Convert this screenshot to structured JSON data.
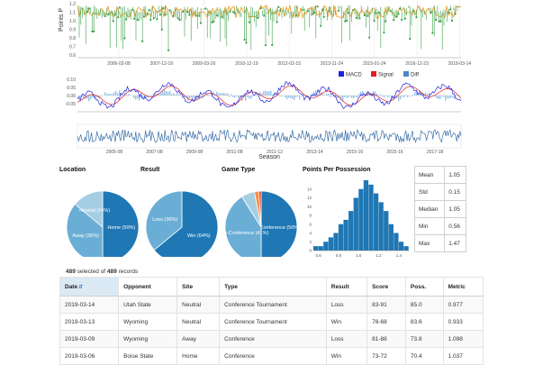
{
  "timeseries": {
    "ylabel": "Points P",
    "y_ticks": [
      "1.2",
      "1.1",
      "1.0",
      "0.9",
      "0.8",
      "0.7",
      "0.6"
    ],
    "x_ticks": [
      "2006-02-08",
      "2007-12-19",
      "2009-03-26",
      "2010-12-19",
      "2012-02-15",
      "2013-11-24",
      "2015-01-24",
      "2016-12-23",
      "2018-03-14"
    ]
  },
  "macd": {
    "y_ticks": [
      "0.10",
      "0.05",
      "0.00",
      "-0.05"
    ],
    "legend": [
      {
        "label": "MACD",
        "color": "#1f1fe0"
      },
      {
        "label": "Signal",
        "color": "#e02020"
      },
      {
        "label": "Diff",
        "color": "#4f86c6"
      }
    ]
  },
  "overview": {
    "xlabel": "Season",
    "x_ticks": [
      "2005-08",
      "2007-08",
      "2009-08",
      "2011-08",
      "2011-12",
      "2013-14",
      "2015-16",
      "2015-16",
      "2017-18"
    ]
  },
  "pies": [
    {
      "title": "Location",
      "colors": [
        "#1f77b4",
        "#6aaed6",
        "#a6cee3"
      ],
      "slices": [
        {
          "label": "Home (50%)",
          "value": 50
        },
        {
          "label": "Away (36%)",
          "value": 36
        },
        {
          "label": "Neutral (14%)",
          "value": 14
        }
      ]
    },
    {
      "title": "Result",
      "colors": [
        "#1f77b4",
        "#6aaed6"
      ],
      "slices": [
        {
          "label": "Win (64%)",
          "value": 64
        },
        {
          "label": "Loss (36%)",
          "value": 36
        }
      ]
    },
    {
      "title": "Game Type",
      "colors": [
        "#1f77b4",
        "#6aaed6",
        "#a6cee3",
        "#fd8d3c",
        "#d62728"
      ],
      "slices": [
        {
          "label": "Conference (50%)",
          "value": 50
        },
        {
          "label": "Non-Conference (41%)",
          "value": 41
        },
        {
          "label": "",
          "value": 6
        },
        {
          "label": "",
          "value": 2
        },
        {
          "label": "",
          "value": 1
        }
      ]
    }
  ],
  "histogram": {
    "title": "Points Per Possession",
    "color": "#1f77b4",
    "xlim": [
      0.55,
      1.5
    ],
    "ylim": [
      0,
      16
    ],
    "x_ticks": [
      0.6,
      0.8,
      1.0,
      1.2,
      1.4
    ],
    "y_ticks": [
      0,
      2,
      4,
      6,
      8,
      10,
      12,
      14
    ],
    "bin_width": 0.05,
    "bins": [
      {
        "x": 0.55,
        "count": 1
      },
      {
        "x": 0.6,
        "count": 1
      },
      {
        "x": 0.65,
        "count": 2
      },
      {
        "x": 0.7,
        "count": 3
      },
      {
        "x": 0.75,
        "count": 4
      },
      {
        "x": 0.8,
        "count": 6
      },
      {
        "x": 0.85,
        "count": 7
      },
      {
        "x": 0.9,
        "count": 9
      },
      {
        "x": 0.95,
        "count": 12
      },
      {
        "x": 1.0,
        "count": 14
      },
      {
        "x": 1.05,
        "count": 16
      },
      {
        "x": 1.1,
        "count": 15
      },
      {
        "x": 1.15,
        "count": 13
      },
      {
        "x": 1.2,
        "count": 11
      },
      {
        "x": 1.25,
        "count": 9
      },
      {
        "x": 1.3,
        "count": 6
      },
      {
        "x": 1.35,
        "count": 4
      },
      {
        "x": 1.4,
        "count": 2
      },
      {
        "x": 1.45,
        "count": 1
      }
    ]
  },
  "stats": [
    {
      "label": "Mean",
      "value": "1.05"
    },
    {
      "label": "Std",
      "value": "0.15"
    },
    {
      "label": "Median",
      "value": "1.05"
    },
    {
      "label": "Min",
      "value": "0.56"
    },
    {
      "label": "Max",
      "value": "1.47"
    }
  ],
  "records": {
    "selected": "489",
    "middle": "selected of",
    "total": "489",
    "suffix": "records"
  },
  "table": {
    "columns": [
      "Date",
      "Opponent",
      "Site",
      "Type",
      "Result",
      "Score",
      "Poss.",
      "Metric"
    ],
    "rows": [
      [
        "2019-03-14",
        "Utah State",
        "Neutral",
        "Conference Tournament",
        "Loss",
        "83-91",
        "85.0",
        "0.977"
      ],
      [
        "2019-03-13",
        "Wyoming",
        "Neutral",
        "Conference Tournament",
        "Win",
        "78-68",
        "83.6",
        "0.933"
      ],
      [
        "2019-03-09",
        "Wyoming",
        "Away",
        "Conference",
        "Loss",
        "81-88",
        "73.8",
        "1.098"
      ],
      [
        "2019-03-06",
        "Boise State",
        "Home",
        "Conference",
        "Win",
        "73-72",
        "70.4",
        "1.037"
      ]
    ]
  }
}
